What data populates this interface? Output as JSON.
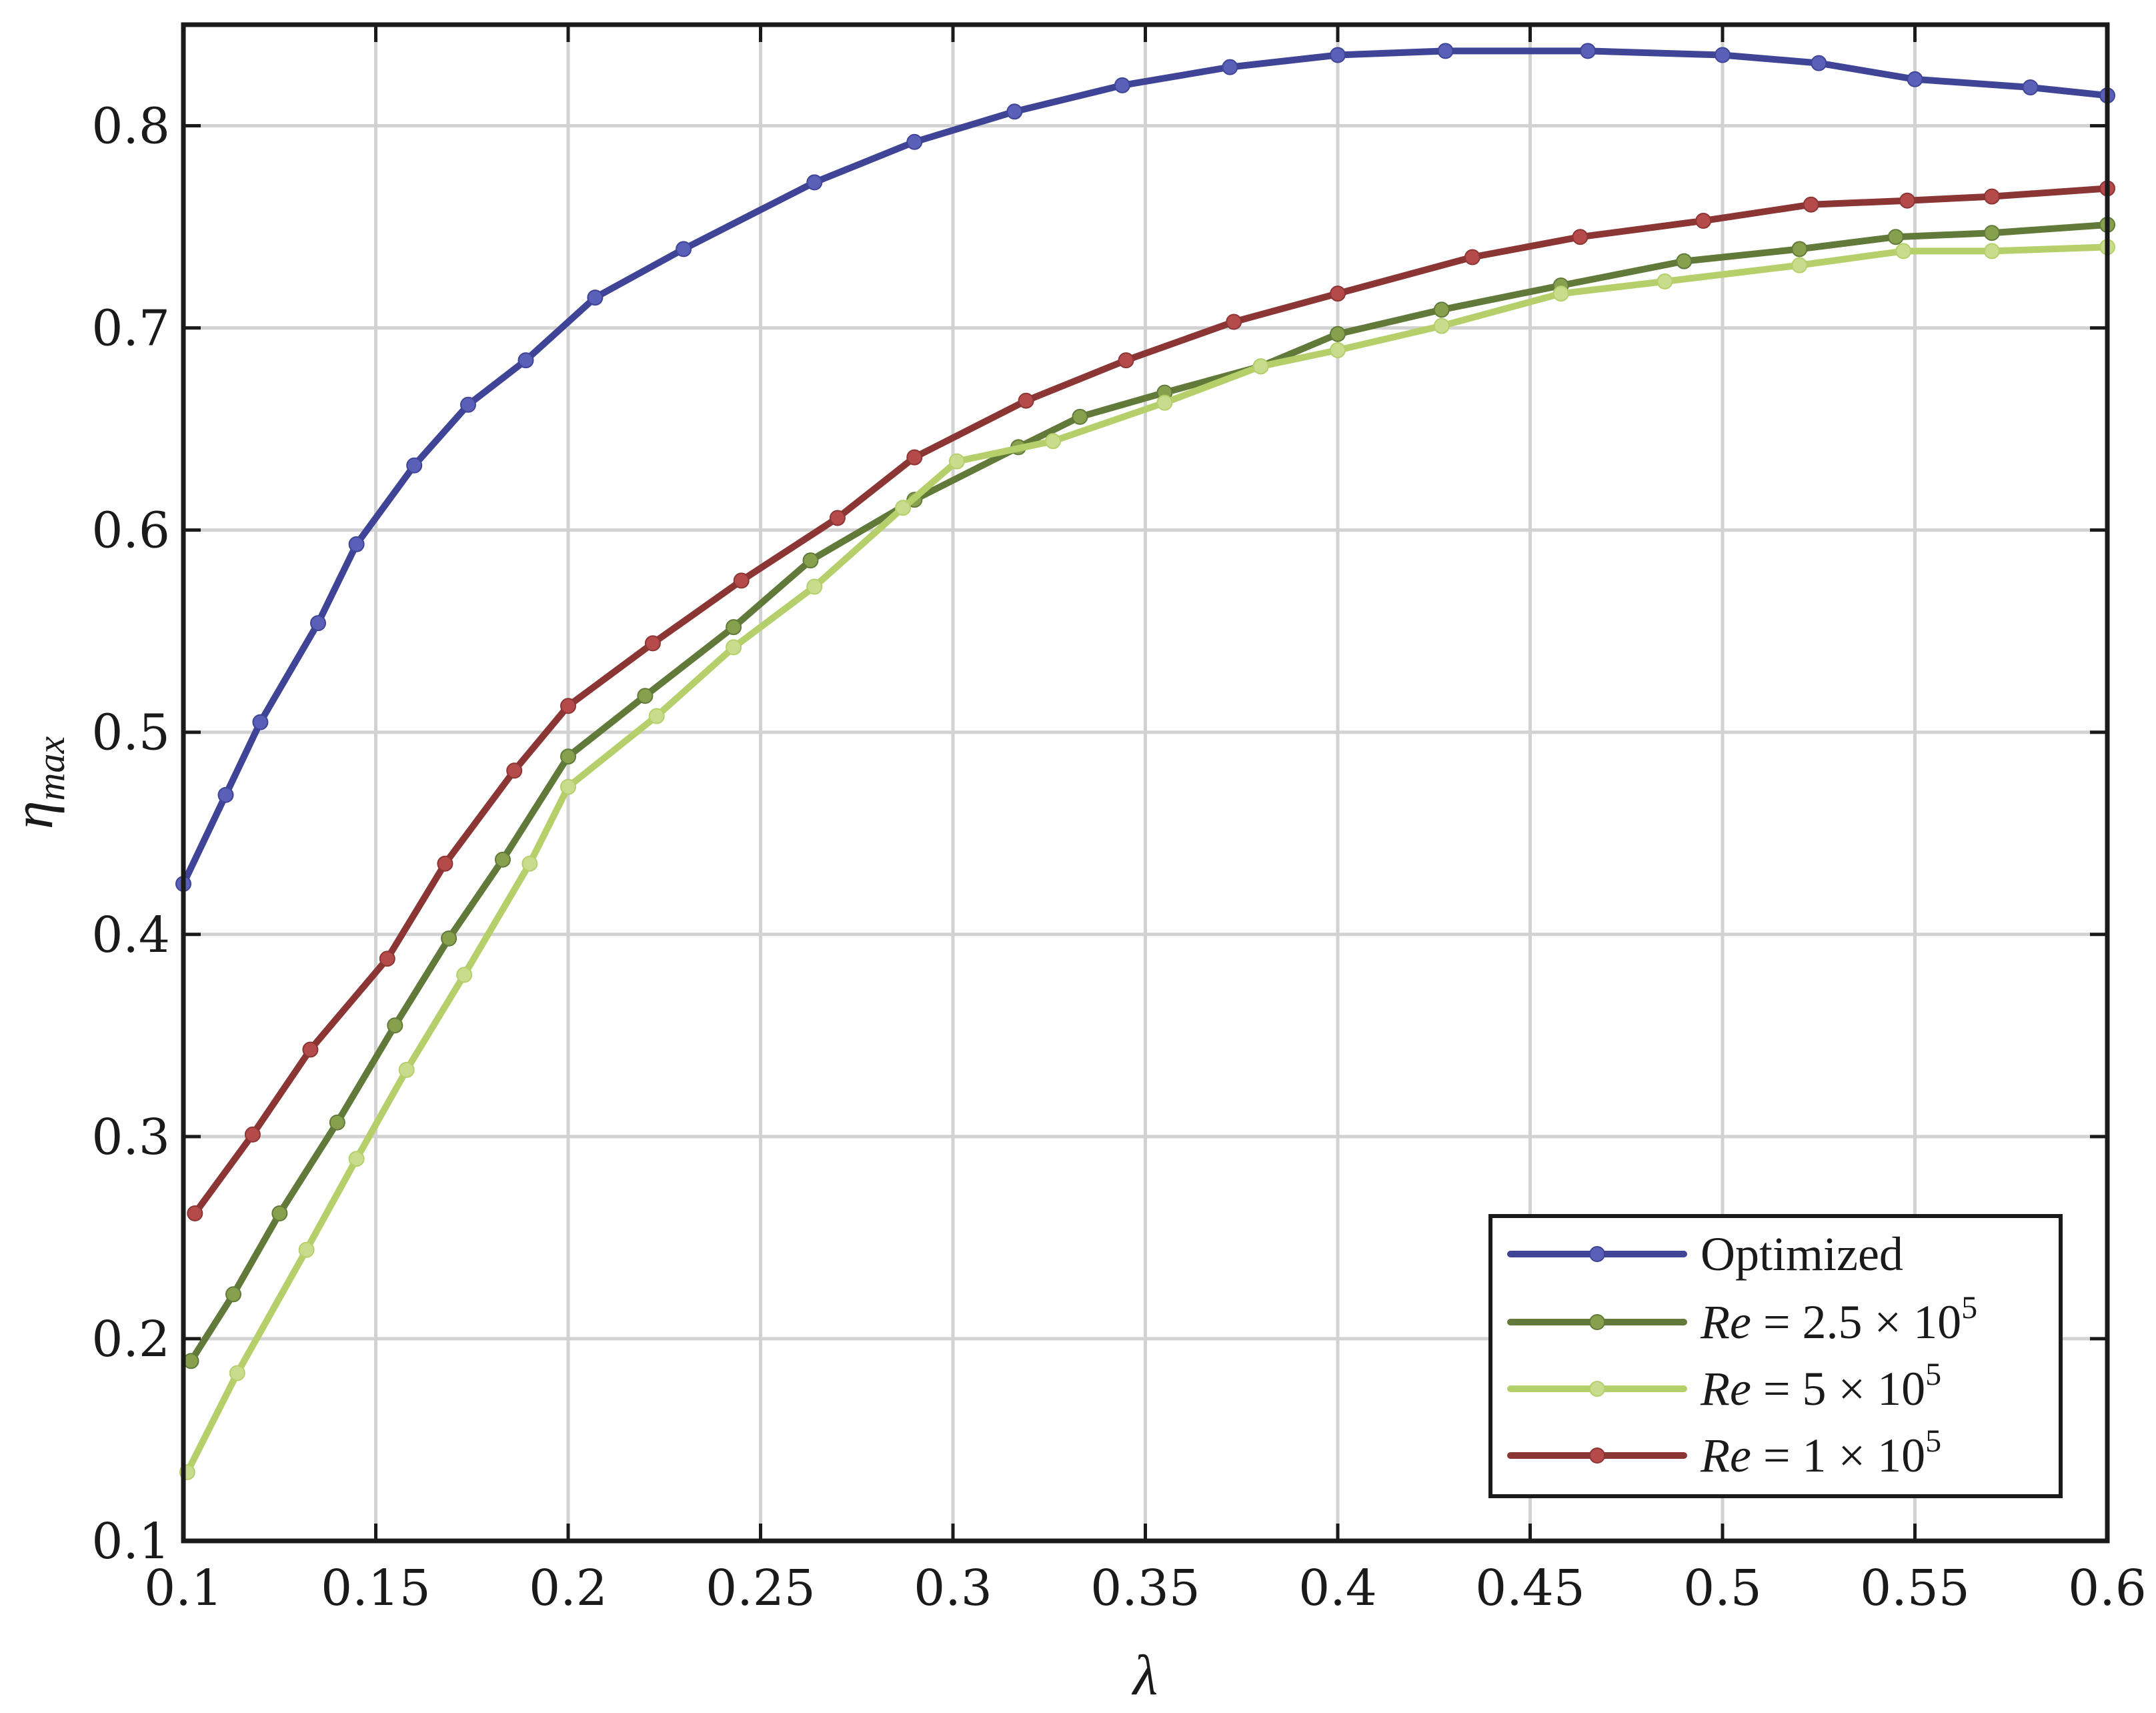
{
  "chart_data": {
    "type": "line",
    "title": "",
    "xlabel": "λ",
    "ylabel_main": "η",
    "ylabel_sub": "max",
    "xlim": [
      0.1,
      0.6
    ],
    "ylim": [
      0.1,
      0.85
    ],
    "x_ticks": [
      "0.1",
      "0.15",
      "0.2",
      "0.25",
      "0.3",
      "0.35",
      "0.4",
      "0.45",
      "0.5",
      "0.55",
      "0.6"
    ],
    "y_ticks": [
      "0.1",
      "0.2",
      "0.3",
      "0.4",
      "0.5",
      "0.6",
      "0.7",
      "0.8"
    ],
    "grid": true,
    "legend_position": "bottom-right",
    "series": [
      {
        "name": "Optimized",
        "color": "#3f4496",
        "marker_color": "#5a60b8",
        "x": [
          0.1,
          0.111,
          0.12,
          0.135,
          0.145,
          0.16,
          0.174,
          0.189,
          0.207,
          0.23,
          0.264,
          0.29,
          0.316,
          0.344,
          0.372,
          0.4,
          0.428,
          0.465,
          0.5,
          0.525,
          0.55,
          0.58,
          0.6
        ],
        "y": [
          0.425,
          0.469,
          0.505,
          0.554,
          0.593,
          0.632,
          0.662,
          0.684,
          0.715,
          0.739,
          0.772,
          0.792,
          0.807,
          0.82,
          0.829,
          0.835,
          0.837,
          0.837,
          0.835,
          0.831,
          0.823,
          0.819,
          0.815
        ]
      },
      {
        "name_main": "Re",
        "name_rest": " = 2.5 × 10",
        "name_exp": "5",
        "color": "#617a3a",
        "marker_color": "#86a04e",
        "x": [
          0.102,
          0.113,
          0.125,
          0.14,
          0.155,
          0.169,
          0.183,
          0.2,
          0.22,
          0.243,
          0.263,
          0.29,
          0.317,
          0.333,
          0.355,
          0.38,
          0.4,
          0.427,
          0.458,
          0.49,
          0.52,
          0.545,
          0.57,
          0.6
        ],
        "y": [
          0.189,
          0.222,
          0.262,
          0.307,
          0.355,
          0.398,
          0.437,
          0.488,
          0.518,
          0.552,
          0.585,
          0.615,
          0.641,
          0.656,
          0.668,
          0.681,
          0.697,
          0.709,
          0.721,
          0.733,
          0.739,
          0.745,
          0.747,
          0.751
        ]
      },
      {
        "name_main": "Re",
        "name_rest": " = 5 × 10",
        "name_exp": "5",
        "color": "#b5cf6a",
        "marker_color": "#c8dc8e",
        "x": [
          0.101,
          0.114,
          0.132,
          0.145,
          0.158,
          0.173,
          0.19,
          0.2,
          0.223,
          0.243,
          0.264,
          0.287,
          0.301,
          0.326,
          0.355,
          0.38,
          0.4,
          0.427,
          0.458,
          0.485,
          0.52,
          0.547,
          0.57,
          0.6
        ],
        "y": [
          0.134,
          0.183,
          0.244,
          0.289,
          0.333,
          0.38,
          0.435,
          0.473,
          0.508,
          0.542,
          0.572,
          0.611,
          0.634,
          0.644,
          0.663,
          0.681,
          0.689,
          0.701,
          0.717,
          0.723,
          0.731,
          0.738,
          0.738,
          0.74
        ]
      },
      {
        "name_main": "Re",
        "name_rest": " = 1 × 10",
        "name_exp": "5",
        "color": "#8c3535",
        "marker_color": "#b54a4a",
        "x": [
          0.103,
          0.118,
          0.133,
          0.153,
          0.168,
          0.186,
          0.2,
          0.222,
          0.245,
          0.27,
          0.29,
          0.319,
          0.345,
          0.373,
          0.4,
          0.435,
          0.463,
          0.495,
          0.523,
          0.548,
          0.57,
          0.6
        ],
        "y": [
          0.262,
          0.301,
          0.343,
          0.388,
          0.435,
          0.481,
          0.513,
          0.544,
          0.575,
          0.606,
          0.636,
          0.664,
          0.684,
          0.703,
          0.717,
          0.735,
          0.745,
          0.753,
          0.761,
          0.763,
          0.765,
          0.769
        ]
      }
    ]
  }
}
